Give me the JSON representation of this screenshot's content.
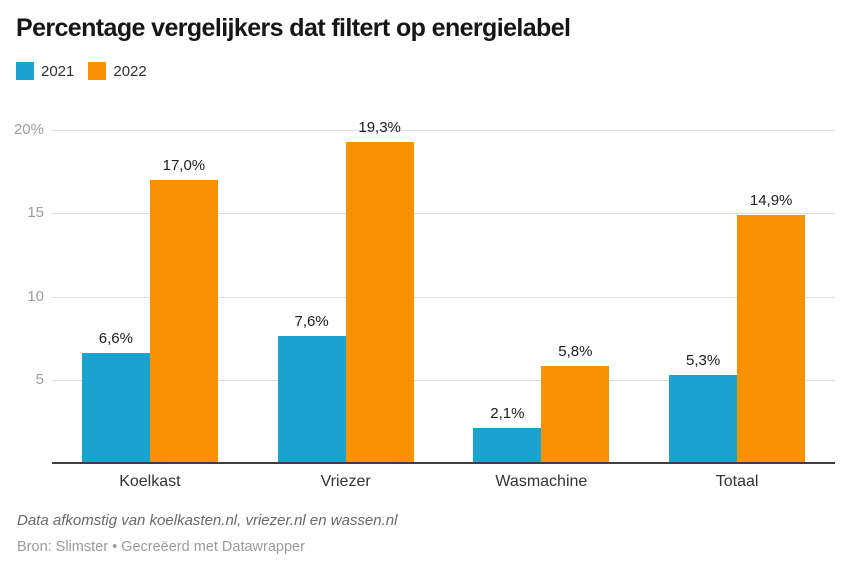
{
  "title": "Percentage vergelijkers dat filtert op energielabel",
  "legend": [
    {
      "label": "2021",
      "color": "#1CA2CE"
    },
    {
      "label": "2022",
      "color": "#F89200"
    }
  ],
  "chart_data": {
    "type": "bar",
    "title": "Percentage vergelijkers dat filtert op energielabel",
    "categories": [
      "Koelkast",
      "Vriezer",
      "Wasmachine",
      "Totaal"
    ],
    "series": [
      {
        "name": "2021",
        "color": "#1CA2CE",
        "values": [
          6.6,
          7.6,
          2.1,
          5.3
        ],
        "labels": [
          "6,6%",
          "7,6%",
          "2,1%",
          "5,3%"
        ]
      },
      {
        "name": "2022",
        "color": "#F89200",
        "values": [
          17.0,
          19.3,
          5.8,
          14.9
        ],
        "labels": [
          "17,0%",
          "19,3%",
          "5,8%",
          "14,9%"
        ]
      }
    ],
    "xlabel": "",
    "ylabel": "",
    "ylim": [
      0,
      20
    ],
    "yticks": [
      {
        "value": 5,
        "label": "5"
      },
      {
        "value": 10,
        "label": "10"
      },
      {
        "value": 15,
        "label": "15"
      },
      {
        "value": 20,
        "label": "20%"
      }
    ],
    "grid": true,
    "legend_position": "top-left",
    "gridline_color": "#dddddd",
    "axis_line_color": "#3f3f3f",
    "tick_label_color": "#9d9d9d"
  },
  "footer": {
    "notes": "Data afkomstig van koelkasten.nl, vriezer.nl en wassen.nl",
    "source": "Bron: Slimster • Gecreëerd met Datawrapper"
  }
}
